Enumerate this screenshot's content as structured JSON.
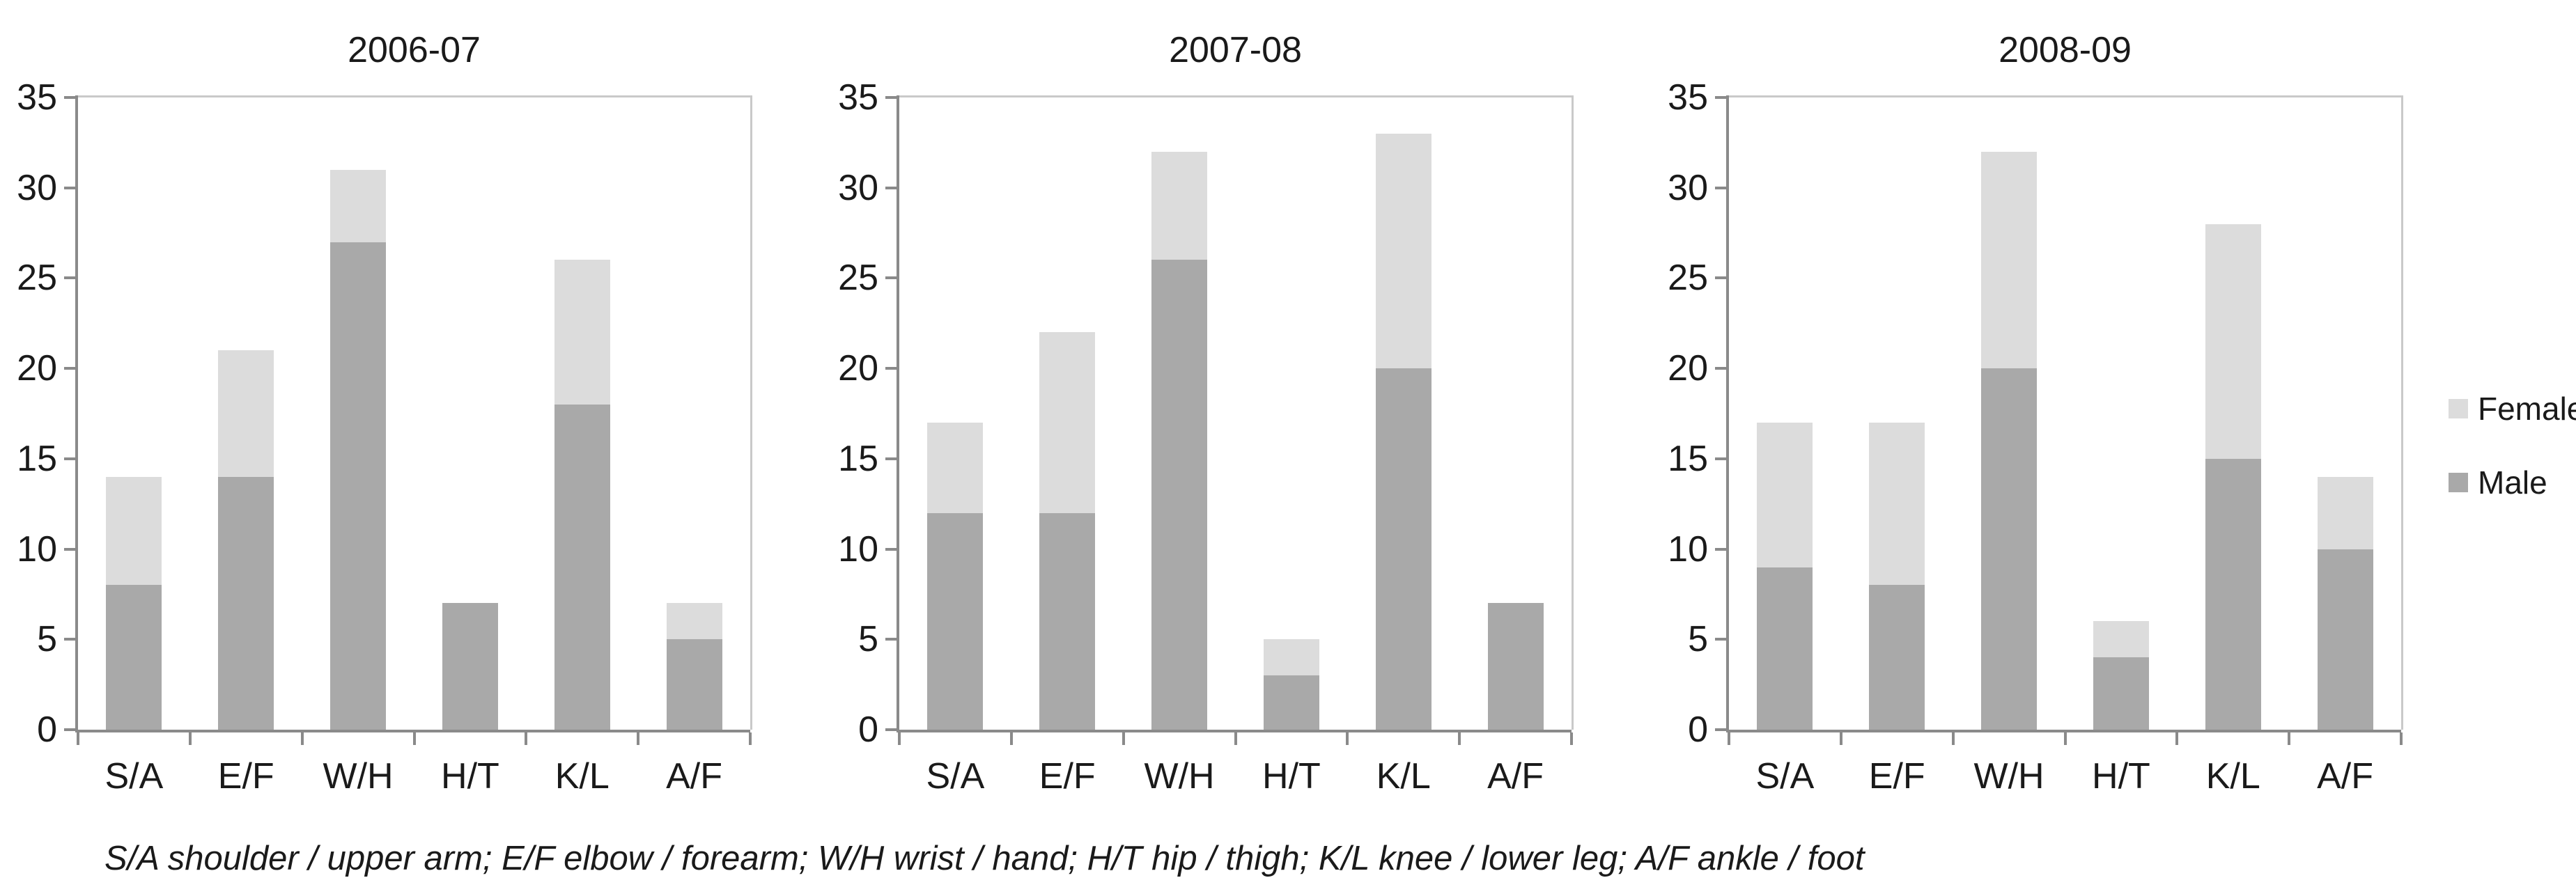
{
  "footnote": "S/A shoulder / upper arm; E/F elbow / forearm; W/H wrist / hand; H/T hip / thigh; K/L knee / lower leg; A/F ankle / foot",
  "colors": {
    "male": "#a9a9a9",
    "female": "#dcdcdc",
    "axis_line": "#8a8a8a",
    "plot_border": "#c9c9c9",
    "text": "#1a1a1a"
  },
  "legend": {
    "position": "right",
    "items": [
      {
        "label": "Female",
        "color": "#dcdcdc"
      },
      {
        "label": "Male",
        "color": "#a9a9a9"
      }
    ]
  },
  "chart_data": [
    {
      "type": "bar",
      "stacked": true,
      "title": "2006-07",
      "categories": [
        "S/A",
        "E/F",
        "W/H",
        "H/T",
        "K/L",
        "A/F"
      ],
      "series": [
        {
          "name": "Male",
          "values": [
            8,
            14,
            27,
            7,
            18,
            5
          ]
        },
        {
          "name": "Female",
          "values": [
            6,
            7,
            4,
            0,
            8,
            2
          ]
        }
      ],
      "totals": [
        14,
        21,
        31,
        7,
        26,
        7
      ],
      "xlabel": "",
      "ylabel": "",
      "ylim": [
        0,
        35
      ],
      "ytick_step": 5,
      "grid": false
    },
    {
      "type": "bar",
      "stacked": true,
      "title": "2007-08",
      "categories": [
        "S/A",
        "E/F",
        "W/H",
        "H/T",
        "K/L",
        "A/F"
      ],
      "series": [
        {
          "name": "Male",
          "values": [
            12,
            12,
            26,
            3,
            20,
            7
          ]
        },
        {
          "name": "Female",
          "values": [
            5,
            10,
            6,
            2,
            13,
            0
          ]
        }
      ],
      "totals": [
        17,
        22,
        32,
        5,
        33,
        7
      ],
      "xlabel": "",
      "ylabel": "",
      "ylim": [
        0,
        35
      ],
      "ytick_step": 5,
      "grid": false
    },
    {
      "type": "bar",
      "stacked": true,
      "title": "2008-09",
      "categories": [
        "S/A",
        "E/F",
        "W/H",
        "H/T",
        "K/L",
        "A/F"
      ],
      "series": [
        {
          "name": "Male",
          "values": [
            9,
            8,
            20,
            4,
            15,
            10
          ]
        },
        {
          "name": "Female",
          "values": [
            8,
            9,
            12,
            2,
            13,
            4
          ]
        }
      ],
      "totals": [
        17,
        17,
        32,
        6,
        28,
        14
      ],
      "xlabel": "",
      "ylabel": "",
      "ylim": [
        0,
        35
      ],
      "ytick_step": 5,
      "grid": false
    }
  ]
}
